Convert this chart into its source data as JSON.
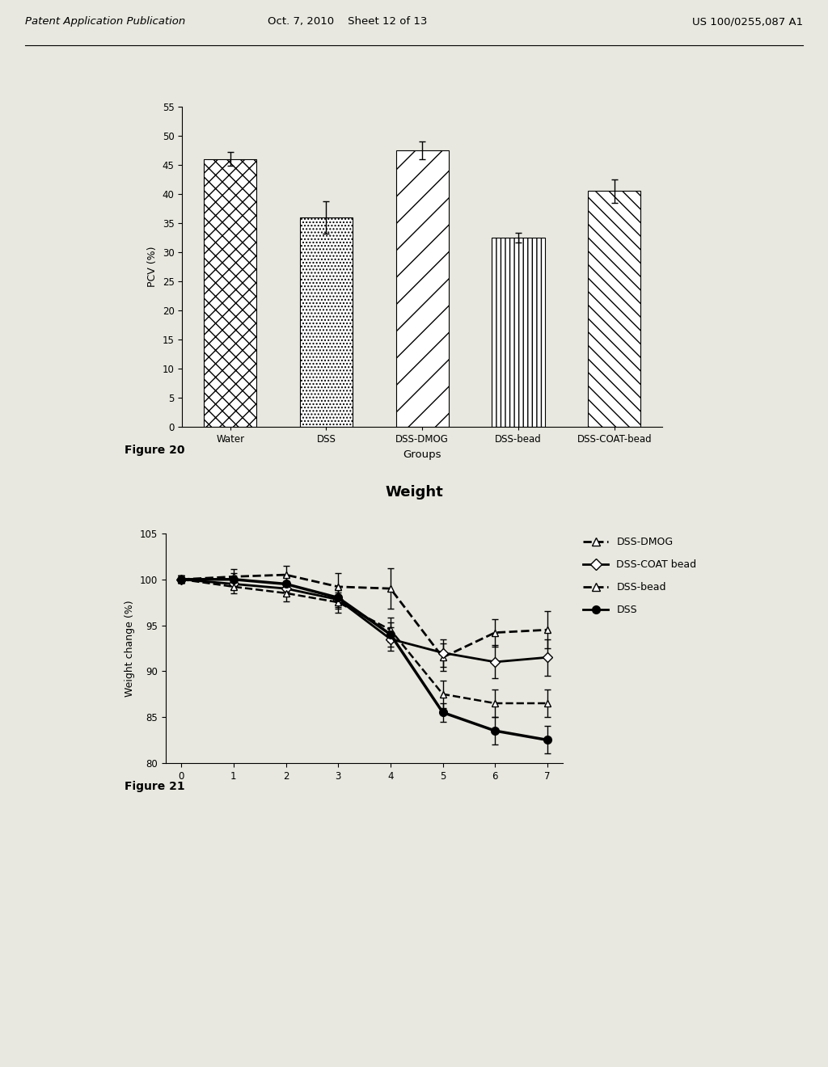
{
  "fig20": {
    "xlabel": "Groups",
    "ylabel": "PCV (%)",
    "categories": [
      "Water",
      "DSS",
      "DSS-DMOG",
      "DSS-bead",
      "DSS-COAT-bead"
    ],
    "values": [
      46.0,
      36.0,
      47.5,
      32.5,
      40.5
    ],
    "errors": [
      1.2,
      2.8,
      1.5,
      0.8,
      2.0
    ],
    "ylim": [
      0,
      55
    ],
    "yticks": [
      0,
      5,
      10,
      15,
      20,
      25,
      30,
      35,
      40,
      45,
      50,
      55
    ],
    "bar_color": "white",
    "bar_edge_color": "black",
    "figure_label": "Figure 20",
    "hatch_patterns": [
      "xx",
      "....",
      "/",
      "|||",
      "\\\\"
    ]
  },
  "fig21": {
    "title": "Weight",
    "ylabel": "Weight change (%)",
    "ylim": [
      80,
      105
    ],
    "yticks": [
      80,
      85,
      90,
      95,
      100,
      105
    ],
    "xticks": [
      0,
      1,
      2,
      3,
      4,
      5,
      6,
      7
    ],
    "figure_label": "Figure 21",
    "series": {
      "DSS-DMOG": {
        "x": [
          0,
          1,
          2,
          3,
          4,
          5,
          6,
          7
        ],
        "y": [
          100.0,
          100.3,
          100.5,
          99.2,
          99.0,
          91.5,
          94.2,
          94.5
        ],
        "yerr": [
          0.4,
          0.8,
          1.0,
          1.5,
          2.2,
          1.5,
          1.5,
          2.0
        ],
        "linestyle": "--",
        "marker": "^",
        "linewidth": 2.0,
        "markersize": 6,
        "fillstyle": "none",
        "label": "DSS-DMOG"
      },
      "DSS-COAT bead": {
        "x": [
          0,
          1,
          2,
          3,
          4,
          5,
          6,
          7
        ],
        "y": [
          100.0,
          99.5,
          99.0,
          97.8,
          93.5,
          92.0,
          91.0,
          91.5
        ],
        "yerr": [
          0.4,
          0.6,
          0.8,
          1.0,
          1.3,
          1.5,
          1.8,
          2.0
        ],
        "linestyle": "-",
        "marker": "D",
        "linewidth": 2.0,
        "markersize": 6,
        "fillstyle": "none",
        "label": "DSS-COAT bead"
      },
      "DSS-bead": {
        "x": [
          0,
          1,
          2,
          3,
          4,
          5,
          6,
          7
        ],
        "y": [
          100.0,
          99.2,
          98.5,
          97.5,
          94.5,
          87.5,
          86.5,
          86.5
        ],
        "yerr": [
          0.4,
          0.7,
          0.9,
          1.1,
          1.3,
          1.5,
          1.5,
          1.5
        ],
        "linestyle": "--",
        "marker": "^",
        "linewidth": 1.8,
        "markersize": 6,
        "fillstyle": "none",
        "label": "DSS-bead"
      },
      "DSS": {
        "x": [
          0,
          1,
          2,
          3,
          4,
          5,
          6,
          7
        ],
        "y": [
          100.0,
          100.0,
          99.5,
          98.0,
          94.0,
          85.5,
          83.5,
          82.5
        ],
        "yerr": [
          0.4,
          0.7,
          0.8,
          1.0,
          1.3,
          1.0,
          1.5,
          1.5
        ],
        "linestyle": "-",
        "marker": "o",
        "linewidth": 2.5,
        "markersize": 7,
        "fillstyle": "full",
        "label": "DSS"
      }
    },
    "series_order": [
      "DSS-DMOG",
      "DSS-COAT bead",
      "DSS-bead",
      "DSS"
    ]
  },
  "header": {
    "left": "Patent Application Publication",
    "center": "Oct. 7, 2010    Sheet 12 of 13",
    "right": "US 100/0255,087 A1"
  },
  "background_color": "#e8e8e0"
}
